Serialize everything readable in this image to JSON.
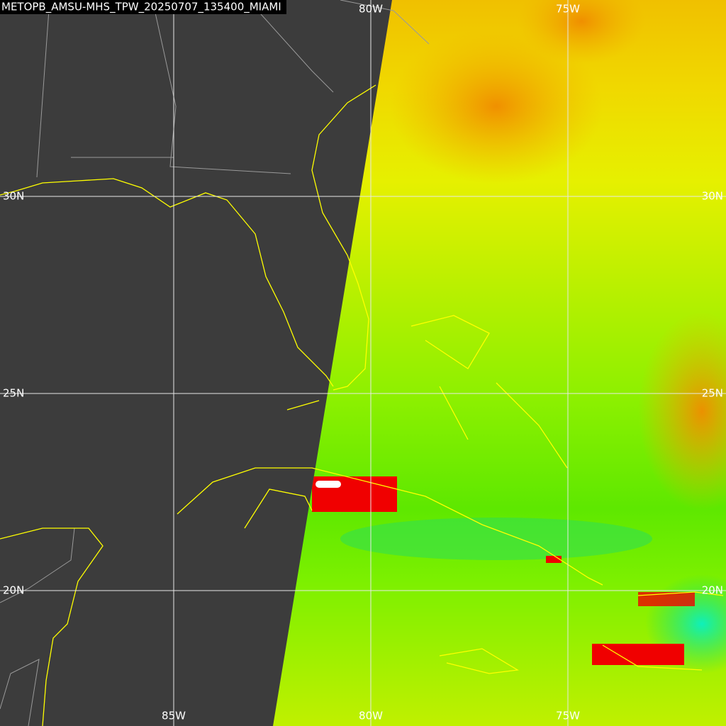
{
  "title": "METOPB_AMSU-MHS_TPW_20250707_135400_MIAMI",
  "labels": {
    "top": [
      "80W",
      "75W"
    ],
    "bottom": [
      "85W",
      "80W",
      "75W"
    ],
    "left": [
      "30N",
      "25N",
      "20N"
    ],
    "right": [
      "30N",
      "25N",
      "20N"
    ]
  }
}
